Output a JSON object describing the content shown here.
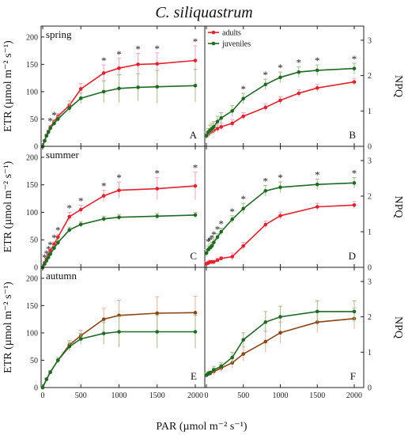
{
  "title": "C. siliquastrum",
  "x_label": "PAR (µmol m⁻² s⁻¹)",
  "y_left_label": "ETR (µmol m⁻² s⁻¹)",
  "y_right_label": "NPQ",
  "legend": [
    "adults",
    "juveniles"
  ],
  "colors": {
    "adults": "#e8202a",
    "juveniles": "#1d6b22",
    "autumn_adults": "#8b4513",
    "error_bar_adults": "#f2a0c8",
    "error_bar_juveniles": "#9fbf7f",
    "error_bar_autumn": "#e8b0a0"
  },
  "chart_data": [
    {
      "type": "line",
      "panel": "A",
      "season": "spring",
      "ylabel": "ETR",
      "ylim": [
        0,
        220
      ],
      "x": [
        0,
        25,
        50,
        75,
        100,
        150,
        200,
        350,
        500,
        800,
        1000,
        1250,
        1500,
        2000
      ],
      "series": [
        {
          "name": "adults",
          "values": [
            0,
            10,
            20,
            27,
            35,
            45,
            55,
            75,
            105,
            134,
            143,
            150,
            151,
            157
          ],
          "errors": [
            0,
            2,
            2,
            3,
            3,
            4,
            5,
            8,
            10,
            15,
            18,
            20,
            20,
            27
          ]
        },
        {
          "name": "juveniles",
          "values": [
            0,
            10,
            19,
            26,
            33,
            42,
            50,
            70,
            88,
            100,
            106,
            108,
            109,
            111
          ],
          "errors": [
            0,
            2,
            2,
            3,
            3,
            4,
            5,
            8,
            10,
            20,
            25,
            25,
            30,
            30
          ]
        }
      ],
      "significant_x": [
        100,
        150,
        800,
        1000,
        1250,
        1500,
        2000
      ]
    },
    {
      "type": "line",
      "panel": "B",
      "season": "spring",
      "ylabel": "NPQ",
      "ylim": [
        0,
        3.4
      ],
      "x": [
        0,
        25,
        50,
        75,
        100,
        150,
        200,
        350,
        500,
        800,
        1000,
        1250,
        1500,
        2000
      ],
      "series": [
        {
          "name": "adults",
          "values": [
            0.3,
            0.35,
            0.4,
            0.42,
            0.45,
            0.5,
            0.55,
            0.65,
            0.85,
            1.1,
            1.3,
            1.5,
            1.65,
            1.82
          ],
          "errors": [
            0.1,
            0.1,
            0.1,
            0.1,
            0.1,
            0.1,
            0.1,
            0.1,
            0.1,
            0.1,
            0.1,
            0.1,
            0.1,
            0.1
          ]
        },
        {
          "name": "juveniles",
          "values": [
            0.3,
            0.4,
            0.45,
            0.5,
            0.55,
            0.7,
            0.8,
            1.0,
            1.35,
            1.75,
            1.95,
            2.1,
            2.15,
            2.2
          ],
          "errors": [
            0.1,
            0.1,
            0.15,
            0.15,
            0.15,
            0.15,
            0.15,
            0.15,
            0.15,
            0.15,
            0.15,
            0.15,
            0.15,
            0.15
          ]
        }
      ],
      "significant_x": [
        500,
        800,
        1000,
        1250,
        1500,
        2000
      ]
    },
    {
      "type": "line",
      "panel": "C",
      "season": "summer",
      "ylabel": "ETR",
      "ylim": [
        0,
        220
      ],
      "x": [
        0,
        25,
        50,
        75,
        100,
        150,
        200,
        350,
        500,
        800,
        1000,
        1500,
        2000
      ],
      "series": [
        {
          "name": "adults",
          "values": [
            0,
            8,
            15,
            22,
            30,
            42,
            55,
            92,
            105,
            130,
            140,
            143,
            148
          ],
          "errors": [
            0,
            2,
            2,
            3,
            3,
            4,
            5,
            8,
            8,
            10,
            15,
            20,
            25
          ]
        },
        {
          "name": "juveniles",
          "values": [
            0,
            6,
            12,
            18,
            24,
            35,
            45,
            68,
            78,
            88,
            91,
            93,
            95
          ],
          "errors": [
            0,
            2,
            2,
            3,
            3,
            4,
            5,
            5,
            5,
            5,
            5,
            5,
            5
          ]
        }
      ],
      "significant_x": [
        25,
        50,
        75,
        100,
        150,
        200,
        350,
        500,
        800,
        1000,
        1500,
        2000
      ]
    },
    {
      "type": "line",
      "panel": "D",
      "season": "summer",
      "ylabel": "NPQ",
      "ylim": [
        0,
        3.4
      ],
      "x": [
        0,
        25,
        50,
        75,
        100,
        150,
        200,
        350,
        500,
        800,
        1000,
        1500,
        2000
      ],
      "series": [
        {
          "name": "adults",
          "values": [
            0.1,
            0.12,
            0.15,
            0.15,
            0.15,
            0.2,
            0.25,
            0.3,
            0.6,
            1.2,
            1.45,
            1.7,
            1.75
          ],
          "errors": [
            0.05,
            0.05,
            0.05,
            0.05,
            0.05,
            0.05,
            0.05,
            0.1,
            0.1,
            0.1,
            0.1,
            0.1,
            0.1
          ]
        },
        {
          "name": "juveniles",
          "values": [
            0.4,
            0.5,
            0.55,
            0.6,
            0.7,
            0.85,
            1.0,
            1.35,
            1.65,
            2.15,
            2.25,
            2.33,
            2.37
          ],
          "errors": [
            0.1,
            0.1,
            0.1,
            0.1,
            0.1,
            0.1,
            0.1,
            0.1,
            0.15,
            0.15,
            0.15,
            0.15,
            0.15
          ]
        }
      ],
      "significant_x": [
        25,
        50,
        75,
        100,
        150,
        200,
        350,
        500,
        800,
        1000,
        1500,
        2000
      ]
    },
    {
      "type": "line",
      "panel": "E",
      "season": "autumn",
      "ylabel": "ETR",
      "ylim": [
        0,
        220
      ],
      "x": [
        0,
        50,
        100,
        200,
        350,
        500,
        800,
        1000,
        1500,
        2000
      ],
      "series": [
        {
          "name": "adults",
          "values": [
            0,
            15,
            28,
            50,
            78,
            95,
            125,
            132,
            136,
            137
          ],
          "errors": [
            0,
            3,
            3,
            5,
            8,
            10,
            20,
            28,
            30,
            30
          ]
        },
        {
          "name": "juveniles",
          "values": [
            0,
            15,
            28,
            50,
            75,
            89,
            99,
            102,
            102,
            102
          ],
          "errors": [
            0,
            3,
            3,
            5,
            8,
            10,
            20,
            28,
            30,
            30
          ]
        }
      ],
      "significant_x": []
    },
    {
      "type": "line",
      "panel": "F",
      "season": "autumn",
      "ylabel": "NPQ",
      "ylim": [
        0,
        3.4
      ],
      "x": [
        0,
        25,
        50,
        100,
        200,
        350,
        500,
        800,
        1000,
        1500,
        2000
      ],
      "series": [
        {
          "name": "adults",
          "values": [
            0.35,
            0.38,
            0.4,
            0.45,
            0.55,
            0.7,
            0.95,
            1.3,
            1.55,
            1.85,
            1.95
          ],
          "errors": [
            0.05,
            0.05,
            0.05,
            0.1,
            0.1,
            0.15,
            0.2,
            0.3,
            0.3,
            0.3,
            0.3
          ]
        },
        {
          "name": "juveniles",
          "values": [
            0.35,
            0.4,
            0.42,
            0.5,
            0.6,
            0.85,
            1.35,
            1.85,
            2.0,
            2.15,
            2.15
          ],
          "errors": [
            0.05,
            0.05,
            0.05,
            0.1,
            0.1,
            0.15,
            0.2,
            0.3,
            0.3,
            0.3,
            0.3
          ]
        }
      ],
      "significant_x": []
    }
  ],
  "x_ticks": [
    0,
    500,
    1000,
    1500,
    2000
  ],
  "etr_ticks": [
    0,
    50,
    100,
    150,
    200
  ],
  "npq_ticks": [
    0,
    1,
    2,
    3
  ]
}
